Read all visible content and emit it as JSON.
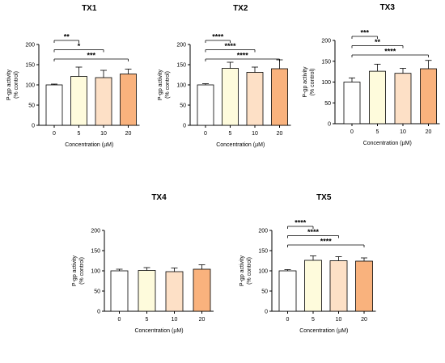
{
  "chart_data": [
    {
      "type": "bar",
      "title": "TX1",
      "xlabel": "Concentration (µM)",
      "ylabel_line1": "P-gp activity",
      "ylabel_line2": "(% control)",
      "categories": [
        "0",
        "5",
        "10",
        "20"
      ],
      "values": [
        100,
        121,
        118,
        127
      ],
      "errors": [
        2,
        23,
        18,
        12
      ],
      "ylim": [
        0,
        200
      ],
      "yticks": [
        0,
        50,
        100,
        150,
        200
      ],
      "significance": [
        {
          "from": "0",
          "to": "5",
          "label": "**"
        },
        {
          "from": "0",
          "to": "10",
          "label": "*"
        },
        {
          "from": "0",
          "to": "20",
          "label": "***"
        }
      ]
    },
    {
      "type": "bar",
      "title": "TX2",
      "xlabel": "Concentration (µM)",
      "ylabel_line1": "P-gp activity",
      "ylabel_line2": "(% control)",
      "categories": [
        "0",
        "5",
        "10",
        "20"
      ],
      "values": [
        100,
        141,
        131,
        140
      ],
      "errors": [
        3,
        15,
        13,
        22
      ],
      "ylim": [
        0,
        200
      ],
      "yticks": [
        0,
        50,
        100,
        150,
        200
      ],
      "significance": [
        {
          "from": "0",
          "to": "5",
          "label": "****"
        },
        {
          "from": "0",
          "to": "10",
          "label": "****"
        },
        {
          "from": "0",
          "to": "20",
          "label": "****"
        }
      ]
    },
    {
      "type": "bar",
      "title": "TX3",
      "xlabel": "Concentration (µM)",
      "ylabel_line1": "P-gp activity",
      "ylabel_line2": "(% control)",
      "categories": [
        "0",
        "5",
        "10",
        "20"
      ],
      "values": [
        100,
        126,
        121,
        132
      ],
      "errors": [
        10,
        17,
        12,
        20
      ],
      "ylim": [
        0,
        200
      ],
      "yticks": [
        0,
        50,
        100,
        150,
        200
      ],
      "significance": [
        {
          "from": "0",
          "to": "5",
          "label": "***"
        },
        {
          "from": "0",
          "to": "10",
          "label": "**"
        },
        {
          "from": "0",
          "to": "20",
          "label": "****"
        }
      ]
    },
    {
      "type": "bar",
      "title": "TX4",
      "xlabel": "Concentration (µM)",
      "ylabel_line1": "P-gp activity",
      "ylabel_line2": "(% control)",
      "categories": [
        "0",
        "5",
        "10",
        "20"
      ],
      "values": [
        100,
        101,
        98,
        104
      ],
      "errors": [
        4,
        7,
        9,
        11
      ],
      "ylim": [
        0,
        200
      ],
      "yticks": [
        0,
        50,
        100,
        150,
        200
      ],
      "significance": []
    },
    {
      "type": "bar",
      "title": "TX5",
      "xlabel": "Concentration (µM)",
      "ylabel_line1": "P-gp activity",
      "ylabel_line2": "(% control)",
      "categories": [
        "0",
        "5",
        "10",
        "20"
      ],
      "values": [
        100,
        126,
        125,
        124
      ],
      "errors": [
        3,
        11,
        10,
        8
      ],
      "ylim": [
        0,
        200
      ],
      "yticks": [
        0,
        50,
        100,
        150,
        200
      ],
      "significance": [
        {
          "from": "0",
          "to": "5",
          "label": "****"
        },
        {
          "from": "0",
          "to": "10",
          "label": "****"
        },
        {
          "from": "0",
          "to": "20",
          "label": "****"
        }
      ]
    }
  ],
  "colors": {
    "bars": [
      "#ffffff",
      "#fefbdc",
      "#fde0c6",
      "#f9b27d"
    ],
    "outline": "#000000"
  }
}
